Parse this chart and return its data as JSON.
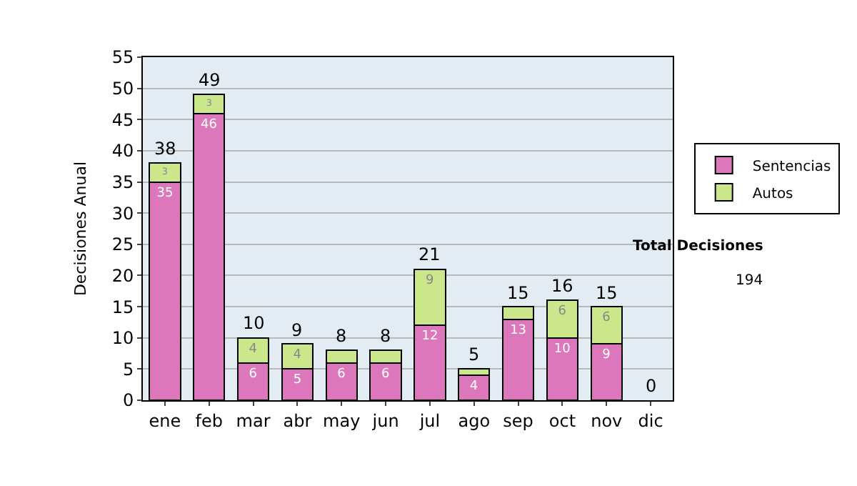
{
  "chart_data": {
    "type": "bar",
    "stacked": true,
    "ylabel": "Decisiones Anual",
    "categories": [
      "ene",
      "feb",
      "mar",
      "abr",
      "may",
      "jun",
      "jul",
      "ago",
      "sep",
      "oct",
      "nov",
      "dic"
    ],
    "series": [
      {
        "name": "Sentencias",
        "color": "#dd77bb",
        "values": [
          35,
          46,
          6,
          5,
          6,
          6,
          12,
          4,
          13,
          10,
          9,
          0
        ],
        "value_labels": [
          "35",
          "46",
          "6",
          "5",
          "6",
          "6",
          "12",
          "4",
          "13",
          "10",
          "9",
          null
        ]
      },
      {
        "name": "Autos",
        "color": "#cce68c",
        "values": [
          3,
          3,
          4,
          4,
          2,
          2,
          9,
          1,
          2,
          6,
          6,
          0
        ],
        "value_labels": [
          "3",
          "3",
          "4",
          "4",
          null,
          null,
          "9",
          null,
          null,
          "6",
          "6",
          null
        ]
      }
    ],
    "totals": [
      "38",
      "49",
      "10",
      "9",
      "8",
      "8",
      "21",
      "5",
      "15",
      "16",
      "15",
      "0"
    ],
    "ylim": [
      0,
      55
    ],
    "yticks": [
      0,
      5,
      10,
      15,
      20,
      25,
      30,
      35,
      40,
      45,
      50,
      55
    ],
    "grid": "y",
    "legend": "right",
    "annotations": [
      "Total Decisiones",
      "194"
    ]
  }
}
